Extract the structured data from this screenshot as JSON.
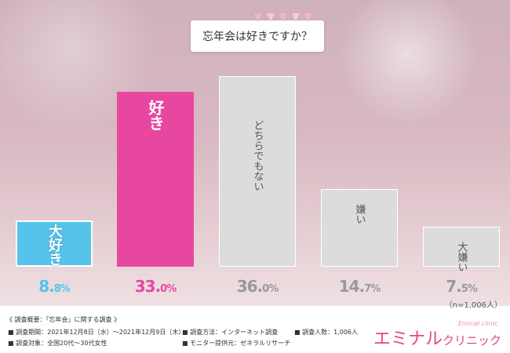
{
  "title": "忘年会は好きですか？",
  "note": "（n=1,006人）",
  "chart_data": {
    "type": "bar",
    "categories": [
      "大好き",
      "好き",
      "どちらでもない",
      "嫌い",
      "大嫌い"
    ],
    "values": [
      8.8,
      33.0,
      36.0,
      14.7,
      7.5
    ],
    "value_labels": [
      {
        "int": "8.",
        "dec": "8%"
      },
      {
        "int": "33.",
        "dec": "0%"
      },
      {
        "int": "36.",
        "dec": "0%"
      },
      {
        "int": "14.",
        "dec": "7%"
      },
      {
        "int": "7.",
        "dec": "5%"
      }
    ],
    "bar_colors": [
      "#55c3ea",
      "#e8479f",
      "#dcdcdc",
      "#dcdcdc",
      "#dcdcdc"
    ],
    "label_colors": [
      "#ffffff",
      "#ffffff",
      "#555555",
      "#555555",
      "#555555"
    ],
    "value_colors": [
      "#55c3ea",
      "#e8479f",
      "#999999",
      "#999999",
      "#999999"
    ],
    "ylim": [
      0,
      36
    ]
  },
  "footer": {
    "heading": "《 調査概要：「忘年会」に関する調査 》",
    "period": "調査期間：2021年12月8日（水）～2021年12月9日（木）",
    "method": "調査方法：インターネット調査",
    "people": "調査人数：1,006人",
    "target": "調査対象：全国20代～30代女性",
    "monitor": "モニター提供元：ゼネラルリサーチ"
  },
  "logo": {
    "main": "エミナル",
    "sub": "クリニック",
    "script": "Eminal clinic"
  },
  "colors": {
    "title_text": "#333333",
    "logo_pink": "#e0488b"
  }
}
